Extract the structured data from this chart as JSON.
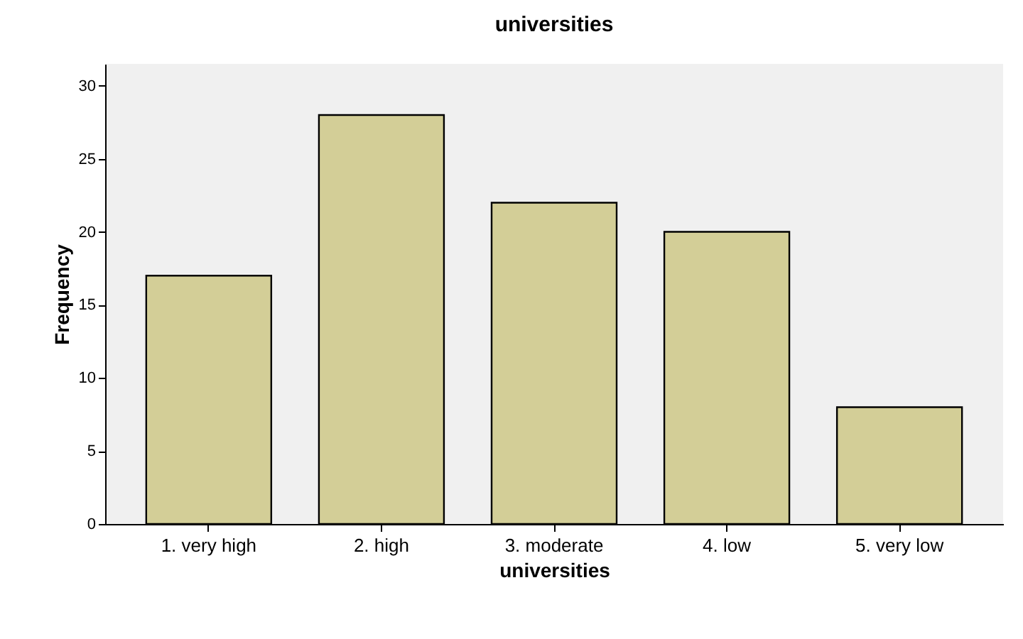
{
  "chart_data": {
    "type": "bar",
    "title": "universities",
    "xlabel": "universities",
    "ylabel": "Frequency",
    "categories": [
      "1. very high",
      "2. high",
      "3. moderate",
      "4. low",
      "5. very low"
    ],
    "values": [
      17,
      28,
      22,
      20,
      8
    ],
    "color": "#d3ce97",
    "ylim": [
      0,
      31.5
    ],
    "yticks": [
      0,
      5,
      10,
      15,
      20,
      25,
      30
    ],
    "grid": false
  }
}
